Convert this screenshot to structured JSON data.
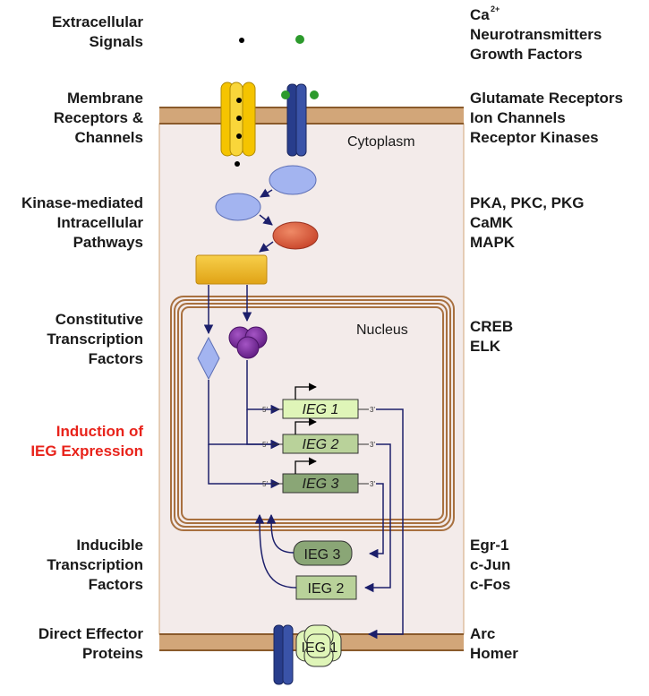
{
  "left_labels": {
    "extracellular": [
      "Extracellular",
      "Signals"
    ],
    "membrane": [
      "Membrane",
      "Receptors &",
      "Channels"
    ],
    "kinase": [
      "Kinase-mediated",
      "Intracellular",
      "Pathways"
    ],
    "constitutive": [
      "Constitutive",
      "Transcription",
      "Factors"
    ],
    "induction": [
      "Induction of",
      "IEG Expression"
    ],
    "inducible": [
      "Inducible",
      "Transcription",
      "Factors"
    ],
    "effector": [
      "Direct Effector",
      "Proteins"
    ]
  },
  "right_labels": {
    "signals": {
      "ca": "Ca",
      "ca_sup": "2+",
      "neuro": "Neurotransmitters",
      "growth": "Growth Factors"
    },
    "receptors": [
      "Glutamate Receptors",
      "Ion Channels",
      "Receptor Kinases"
    ],
    "kinases": [
      "PKA, PKC, PKG",
      "CaMK",
      "MAPK"
    ],
    "tfs": [
      "CREB",
      "ELK"
    ],
    "inducible": [
      "Egr-1",
      "c-Jun",
      "c-Fos"
    ],
    "effectors": [
      "Arc",
      "Homer"
    ]
  },
  "compartments": {
    "cytoplasm": "Cytoplasm",
    "nucleus": "Nucleus"
  },
  "genes": [
    {
      "name": "IEG 1",
      "five": "5'",
      "three": "3'"
    },
    {
      "name": "IEG 2",
      "five": "5'",
      "three": "3'"
    },
    {
      "name": "IEG 3",
      "five": "5'",
      "three": "3'"
    }
  ],
  "proteins": {
    "ieg3": "IEG 3",
    "ieg2": "IEG 2",
    "ieg1": "IEG 1"
  },
  "colors": {
    "membrane": "#d2a679",
    "cytoplasm": "#f3ebea",
    "arrow": "#1c1f6b",
    "emphasis": "#e8231b",
    "gene1": "#dff5b8",
    "gene2": "#b9d29a",
    "gene3": "#8aa676"
  }
}
